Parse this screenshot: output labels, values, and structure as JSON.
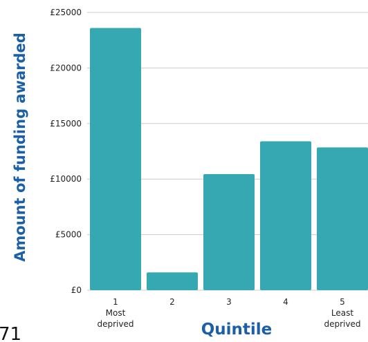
{
  "page_number": "71",
  "colors": {
    "bar": "#35a8b2",
    "axis_title": "#1b5fa8",
    "grid": "#cccccc",
    "text": "#222222"
  },
  "chart_data": {
    "type": "bar",
    "categories": [
      [
        "1",
        "Most",
        "deprived"
      ],
      [
        "2"
      ],
      [
        "3"
      ],
      [
        "4"
      ],
      [
        "5",
        "Least",
        "deprived"
      ]
    ],
    "values": [
      23600,
      1600,
      10450,
      13400,
      12850
    ],
    "xlabel": "Quintile",
    "ylabel": "Amount of funding awarded",
    "ylim": [
      0,
      25000
    ],
    "yticks": [
      0,
      5000,
      10000,
      15000,
      20000,
      25000
    ],
    "ytick_labels": [
      "£0",
      "£5000",
      "£10000",
      "£15000",
      "£20000",
      "£25000"
    ],
    "grid": true,
    "legend": "none"
  }
}
